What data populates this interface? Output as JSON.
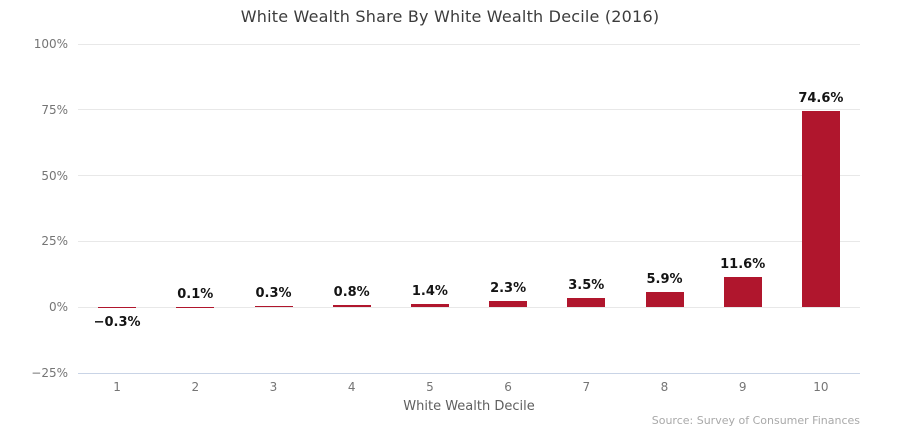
{
  "chart_data": {
    "type": "bar",
    "title": "White Wealth Share By White Wealth Decile (2016)",
    "xlabel": "White Wealth Decile",
    "ylabel": "",
    "categories": [
      "1",
      "2",
      "3",
      "4",
      "5",
      "6",
      "7",
      "8",
      "9",
      "10"
    ],
    "values": [
      -0.3,
      0.1,
      0.3,
      0.8,
      1.4,
      2.3,
      3.5,
      5.9,
      11.6,
      74.6
    ],
    "value_labels": [
      "−0.3%",
      "0.1%",
      "0.3%",
      "0.8%",
      "1.4%",
      "2.3%",
      "3.5%",
      "5.9%",
      "11.6%",
      "74.6%"
    ],
    "ylim": [
      -25,
      100
    ],
    "y_ticks": [
      {
        "value": 100,
        "label": "100%"
      },
      {
        "value": 75,
        "label": "75%"
      },
      {
        "value": 50,
        "label": "50%"
      },
      {
        "value": 25,
        "label": "25%"
      },
      {
        "value": 0,
        "label": "0%"
      },
      {
        "value": -25,
        "label": "−25%"
      }
    ],
    "grid": true,
    "legend": "none",
    "source_note": "Source: Survey of Consumer Finances"
  },
  "colors": {
    "bar": "#b0162d",
    "gridline": "#e8e8e8",
    "axis_line": "#c9d4e6",
    "title_text": "#3c3c3c",
    "tick_text": "#757575",
    "axis_title_text": "#5f5f5f",
    "label_text": "#141414",
    "source_text": "#a9a9a9",
    "background": "#ffffff"
  }
}
